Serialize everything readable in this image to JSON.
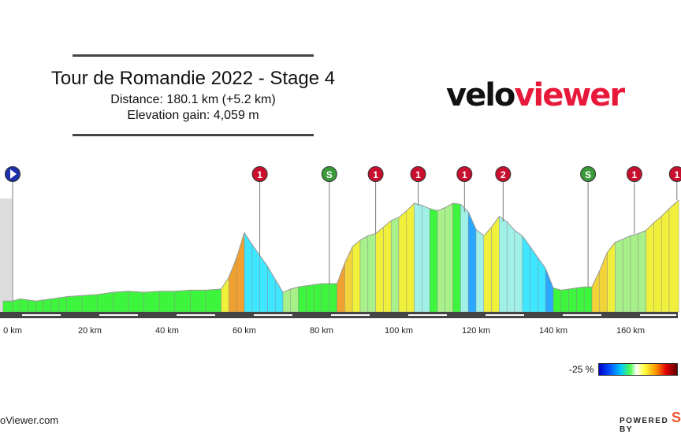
{
  "header": {
    "title": "Tour de Romandie 2022 - Stage 4",
    "distance": "Distance: 180.1 km (+5.2 km)",
    "elevation": "Elevation gain: 4,059 m"
  },
  "logo": {
    "part1": "velo",
    "part2": "viewer"
  },
  "footer": {
    "site": "oViewer.com",
    "powered": "POWERED BY",
    "mark": "S"
  },
  "legend": {
    "label": "-25 %"
  },
  "colors": {
    "accent": "#e8183a",
    "road": "#444444"
  },
  "chart_data": {
    "type": "area",
    "title": "Tour de Romandie 2022 - Stage 4",
    "xlabel": "",
    "ylabel": "",
    "xlim": [
      -2.5,
      172.5
    ],
    "x_ticks": [
      0,
      20,
      40,
      60,
      80,
      100,
      120,
      140,
      160
    ],
    "x_tick_labels": [
      "0 km",
      "20 km",
      "40 km",
      "60 km",
      "80 km",
      "100 km",
      "120 km",
      "140 km",
      "160 km"
    ],
    "profile": {
      "x": [
        -2.5,
        0,
        2,
        4,
        6,
        8,
        10,
        12,
        14,
        18,
        22,
        26,
        30,
        34,
        38,
        42,
        46,
        50,
        54,
        56,
        58,
        60,
        62,
        64,
        66,
        68,
        70,
        72,
        74,
        76,
        78,
        80,
        82,
        84,
        86,
        88,
        90,
        92,
        94,
        96,
        98,
        100,
        102,
        104,
        106,
        108,
        110,
        112,
        114,
        116,
        118,
        120,
        122,
        124,
        126,
        128,
        130,
        132,
        134,
        136,
        138,
        140,
        142,
        144,
        146,
        148,
        150,
        152,
        154,
        156,
        158,
        160,
        162,
        164,
        166,
        168,
        170,
        172.5
      ],
      "y": [
        0.1,
        0.1,
        0.12,
        0.11,
        0.1,
        0.11,
        0.12,
        0.13,
        0.14,
        0.15,
        0.16,
        0.18,
        0.19,
        0.18,
        0.19,
        0.19,
        0.2,
        0.2,
        0.21,
        0.32,
        0.5,
        0.73,
        0.62,
        0.52,
        0.42,
        0.3,
        0.18,
        0.21,
        0.23,
        0.24,
        0.25,
        0.26,
        0.26,
        0.26,
        0.45,
        0.6,
        0.66,
        0.7,
        0.72,
        0.78,
        0.84,
        0.87,
        0.93,
        1.0,
        0.98,
        0.95,
        0.93,
        0.96,
        1.0,
        0.99,
        0.92,
        0.76,
        0.7,
        0.78,
        0.88,
        0.83,
        0.75,
        0.7,
        0.6,
        0.5,
        0.4,
        0.22,
        0.2,
        0.21,
        0.22,
        0.23,
        0.23,
        0.38,
        0.55,
        0.64,
        0.67,
        0.7,
        0.72,
        0.75,
        0.82,
        0.88,
        0.95,
        1.03
      ]
    },
    "climbs": [
      {
        "x": 64,
        "label": "1",
        "category": "KOM"
      },
      {
        "x": 82,
        "label": "S",
        "category": "Sprint"
      },
      {
        "x": 94,
        "label": "1",
        "category": "KOM"
      },
      {
        "x": 105,
        "label": "1",
        "category": "KOM"
      },
      {
        "x": 117,
        "label": "1",
        "category": "KOM"
      },
      {
        "x": 127,
        "label": "2",
        "category": "KOM"
      },
      {
        "x": 149,
        "label": "S",
        "category": "Sprint"
      },
      {
        "x": 161,
        "label": "1",
        "category": "KOM"
      },
      {
        "x": 172,
        "label": "1",
        "category": "KOM"
      }
    ],
    "start_marker_x": 0,
    "legend_scale": {
      "min_label": "-25 %",
      "placement": "bottom-right"
    },
    "grid": false
  }
}
